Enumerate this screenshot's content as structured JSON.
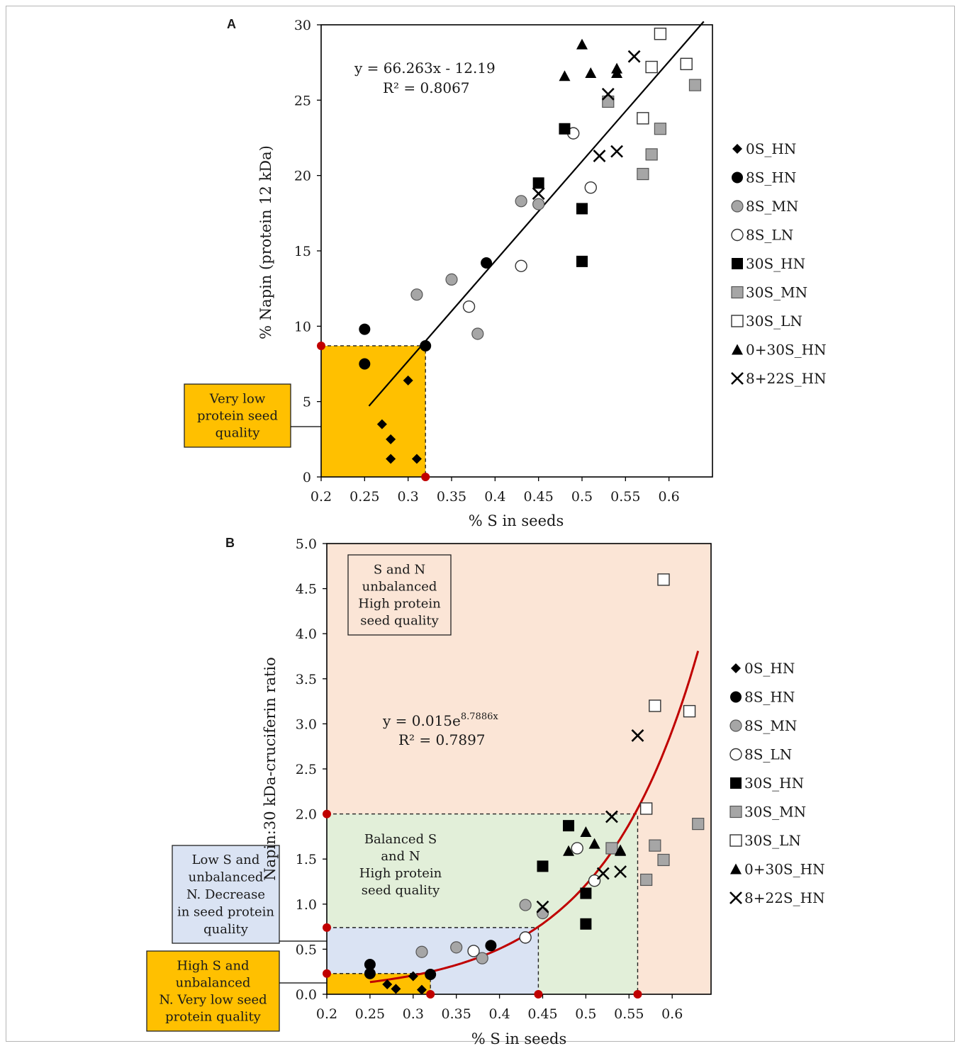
{
  "colors": {
    "orange": "#ffc000",
    "blue": "#dae3f3",
    "green": "#e2efd9",
    "peach": "#fbe5d6",
    "red": "#c00000",
    "gray": "#a6a6a6",
    "black": "#000000"
  },
  "legend": [
    {
      "label": "0S_HN",
      "marker": "diamond"
    },
    {
      "label": "8S_HN",
      "marker": "circle-black"
    },
    {
      "label": "8S_MN",
      "marker": "circle-gray"
    },
    {
      "label": "8S_LN",
      "marker": "circle-white"
    },
    {
      "label": "30S_HN",
      "marker": "square-black"
    },
    {
      "label": "30S_MN",
      "marker": "square-gray"
    },
    {
      "label": "30S_LN",
      "marker": "square-white"
    },
    {
      "label": "0+30S_HN",
      "marker": "triangle"
    },
    {
      "label": "8+22S_HN",
      "marker": "cross"
    }
  ],
  "chart_data": [
    {
      "panel": "A",
      "type": "scatter",
      "xlabel": "% S in seeds",
      "ylabel": "% Napin (protein 12 kDa)",
      "xlim": [
        0.2,
        0.65
      ],
      "ylim": [
        0,
        30
      ],
      "xticks": [
        "0.2",
        "0.25",
        "0.3",
        "0.35",
        "0.4",
        "0.45",
        "0.5",
        "0.55",
        "0.6"
      ],
      "yticks": [
        "0",
        "5",
        "10",
        "15",
        "20",
        "25",
        "30"
      ],
      "equation": "y = 66.263x - 12.19",
      "r2": "R² = 0.8067",
      "fit": {
        "kind": "linear",
        "slope": 66.263,
        "intercept": -12.19,
        "x_range": [
          0.255,
          0.64
        ]
      },
      "annotation": {
        "text": [
          "Very low",
          "protein seed",
          "quality"
        ],
        "region_x": [
          0.2,
          0.32
        ],
        "region_y": [
          0,
          8.7
        ]
      },
      "series": [
        {
          "name": "0S_HN",
          "points": [
            [
              0.27,
              3.5
            ],
            [
              0.28,
              2.5
            ],
            [
              0.28,
              1.2
            ],
            [
              0.3,
              6.4
            ],
            [
              0.31,
              1.2
            ]
          ]
        },
        {
          "name": "8S_HN",
          "points": [
            [
              0.25,
              9.8
            ],
            [
              0.25,
              7.5
            ],
            [
              0.32,
              8.7
            ],
            [
              0.39,
              14.2
            ]
          ]
        },
        {
          "name": "8S_MN",
          "points": [
            [
              0.31,
              12.1
            ],
            [
              0.35,
              13.1
            ],
            [
              0.38,
              9.5
            ],
            [
              0.43,
              18.3
            ],
            [
              0.45,
              18.1
            ]
          ]
        },
        {
          "name": "8S_LN",
          "points": [
            [
              0.37,
              11.3
            ],
            [
              0.43,
              14.0
            ],
            [
              0.49,
              22.8
            ],
            [
              0.51,
              19.2
            ]
          ]
        },
        {
          "name": "30S_HN",
          "points": [
            [
              0.45,
              19.5
            ],
            [
              0.48,
              23.1
            ],
            [
              0.5,
              17.8
            ],
            [
              0.5,
              14.3
            ]
          ]
        },
        {
          "name": "30S_MN",
          "points": [
            [
              0.53,
              24.9
            ],
            [
              0.57,
              20.1
            ],
            [
              0.58,
              21.4
            ],
            [
              0.59,
              23.1
            ],
            [
              0.63,
              26.0
            ]
          ]
        },
        {
          "name": "30S_LN",
          "points": [
            [
              0.57,
              23.8
            ],
            [
              0.58,
              27.2
            ],
            [
              0.59,
              29.4
            ],
            [
              0.62,
              27.4
            ]
          ]
        },
        {
          "name": "0+30S_HN",
          "points": [
            [
              0.48,
              26.6
            ],
            [
              0.5,
              28.7
            ],
            [
              0.51,
              26.8
            ],
            [
              0.54,
              27.1
            ],
            [
              0.54,
              26.8
            ]
          ]
        },
        {
          "name": "8+22S_HN",
          "points": [
            [
              0.45,
              18.8
            ],
            [
              0.52,
              21.3
            ],
            [
              0.53,
              25.4
            ],
            [
              0.54,
              21.6
            ],
            [
              0.56,
              27.9
            ]
          ]
        }
      ]
    },
    {
      "panel": "B",
      "type": "scatter",
      "xlabel": "% S in seeds",
      "ylabel": "Napin:30 kDa-cruciferin ratio",
      "xlim": [
        0.2,
        0.645
      ],
      "ylim": [
        0,
        5.0
      ],
      "xticks": [
        "0.2",
        "0.25",
        "0.3",
        "0.35",
        "0.4",
        "0.45",
        "0.5",
        "0.55",
        "0.6"
      ],
      "yticks": [
        "0.0",
        "0.5",
        "1.0",
        "1.5",
        "2.0",
        "2.5",
        "3.0",
        "3.5",
        "4.0",
        "4.5",
        "5.0"
      ],
      "equation": "y = 0.015e",
      "equation_exp": "8.7886x",
      "r2": "R² = 0.7897",
      "fit": {
        "kind": "exponential",
        "a": 0.015,
        "b": 8.7886,
        "x_range": [
          0.25,
          0.63
        ]
      },
      "regions": [
        {
          "text": [
            "S and N",
            "unbalanced",
            "High protein",
            "seed quality"
          ],
          "x": [
            0.2,
            0.645
          ],
          "y": [
            0,
            5.0
          ],
          "color": "peach"
        },
        {
          "text": [
            "Balanced S",
            "and N",
            "High protein",
            "seed quality"
          ],
          "x": [
            0.2,
            0.56
          ],
          "y": [
            0,
            2.0
          ],
          "color": "green"
        },
        {
          "text": [
            "Low S and",
            "unbalanced",
            "N. Decrease",
            "in seed protein",
            "quality"
          ],
          "x": [
            0.2,
            0.445
          ],
          "y": [
            0,
            0.74
          ],
          "color": "blue"
        },
        {
          "text": [
            "High S and",
            "unbalanced",
            "N. Very low seed",
            "protein quality"
          ],
          "x": [
            0.2,
            0.32
          ],
          "y": [
            0,
            0.23
          ],
          "color": "orange"
        }
      ],
      "series": [
        {
          "name": "0S_HN",
          "points": [
            [
              0.27,
              0.11
            ],
            [
              0.28,
              0.06
            ],
            [
              0.3,
              0.2
            ],
            [
              0.31,
              0.05
            ]
          ]
        },
        {
          "name": "8S_HN",
          "points": [
            [
              0.25,
              0.33
            ],
            [
              0.25,
              0.23
            ],
            [
              0.32,
              0.22
            ],
            [
              0.39,
              0.54
            ]
          ]
        },
        {
          "name": "8S_MN",
          "points": [
            [
              0.31,
              0.47
            ],
            [
              0.35,
              0.52
            ],
            [
              0.38,
              0.4
            ],
            [
              0.43,
              0.99
            ],
            [
              0.45,
              0.9
            ]
          ]
        },
        {
          "name": "8S_LN",
          "points": [
            [
              0.37,
              0.48
            ],
            [
              0.43,
              0.63
            ],
            [
              0.49,
              1.62
            ],
            [
              0.51,
              1.26
            ]
          ]
        },
        {
          "name": "30S_HN",
          "points": [
            [
              0.45,
              1.42
            ],
            [
              0.48,
              1.87
            ],
            [
              0.5,
              1.12
            ],
            [
              0.5,
              0.78
            ]
          ]
        },
        {
          "name": "30S_MN",
          "points": [
            [
              0.53,
              1.62
            ],
            [
              0.57,
              1.27
            ],
            [
              0.58,
              1.65
            ],
            [
              0.59,
              1.49
            ],
            [
              0.63,
              1.89
            ]
          ]
        },
        {
          "name": "30S_LN",
          "points": [
            [
              0.57,
              2.06
            ],
            [
              0.58,
              3.2
            ],
            [
              0.59,
              4.6
            ],
            [
              0.62,
              3.14
            ]
          ]
        },
        {
          "name": "0+30S_HN",
          "points": [
            [
              0.48,
              1.59
            ],
            [
              0.5,
              1.8
            ],
            [
              0.51,
              1.67
            ],
            [
              0.54,
              1.59
            ],
            [
              0.54,
              1.6
            ]
          ]
        },
        {
          "name": "8+22S_HN",
          "points": [
            [
              0.45,
              0.97
            ],
            [
              0.52,
              1.34
            ],
            [
              0.53,
              1.97
            ],
            [
              0.54,
              1.36
            ],
            [
              0.56,
              2.87
            ]
          ]
        }
      ]
    }
  ]
}
